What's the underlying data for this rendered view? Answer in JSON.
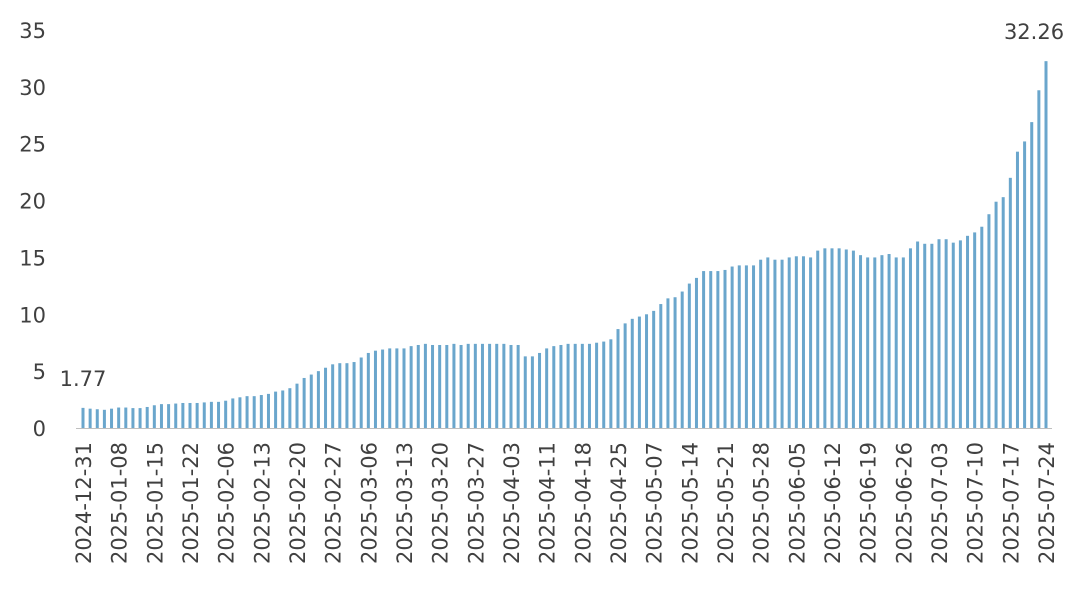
{
  "chart_data": {
    "type": "bar",
    "color": "#6aa6cc",
    "ylim": [
      0,
      35
    ],
    "yticks": [
      0,
      5,
      10,
      15,
      20,
      25,
      30,
      35
    ],
    "categories": [
      "2024-12-31",
      null,
      null,
      null,
      null,
      "2025-01-08",
      null,
      null,
      null,
      null,
      "2025-01-15",
      null,
      null,
      null,
      null,
      "2025-01-22",
      null,
      null,
      null,
      null,
      "2025-02-06",
      null,
      null,
      null,
      null,
      "2025-02-13",
      null,
      null,
      null,
      null,
      "2025-02-20",
      null,
      null,
      null,
      null,
      "2025-02-27",
      null,
      null,
      null,
      null,
      "2025-03-06",
      null,
      null,
      null,
      null,
      "2025-03-13",
      null,
      null,
      null,
      null,
      "2025-03-20",
      null,
      null,
      null,
      null,
      "2025-03-27",
      null,
      null,
      null,
      null,
      "2025-04-03",
      null,
      null,
      null,
      null,
      "2025-04-11",
      null,
      null,
      null,
      null,
      "2025-04-18",
      null,
      null,
      null,
      null,
      "2025-04-25",
      null,
      null,
      null,
      null,
      "2025-05-07",
      null,
      null,
      null,
      null,
      "2025-05-14",
      null,
      null,
      null,
      null,
      "2025-05-21",
      null,
      null,
      null,
      null,
      "2025-05-28",
      null,
      null,
      null,
      null,
      "2025-06-05",
      null,
      null,
      null,
      null,
      "2025-06-12",
      null,
      null,
      null,
      null,
      "2025-06-19",
      null,
      null,
      null,
      null,
      "2025-06-26",
      null,
      null,
      null,
      null,
      "2025-07-03",
      null,
      null,
      null,
      null,
      "2025-07-10",
      null,
      null,
      null,
      null,
      "2025-07-17",
      null,
      null,
      null,
      null,
      "2025-07-24"
    ],
    "values": [
      1.77,
      1.7,
      1.65,
      1.6,
      1.7,
      1.8,
      1.8,
      1.75,
      1.75,
      1.85,
      2.0,
      2.1,
      2.1,
      2.15,
      2.2,
      2.2,
      2.2,
      2.25,
      2.3,
      2.3,
      2.4,
      2.6,
      2.7,
      2.8,
      2.8,
      2.9,
      3.0,
      3.2,
      3.3,
      3.5,
      3.9,
      4.4,
      4.7,
      5.0,
      5.3,
      5.6,
      5.7,
      5.7,
      5.8,
      6.2,
      6.6,
      6.8,
      6.9,
      7.0,
      7.0,
      7.0,
      7.2,
      7.3,
      7.4,
      7.3,
      7.3,
      7.3,
      7.4,
      7.3,
      7.4,
      7.4,
      7.4,
      7.4,
      7.4,
      7.4,
      7.3,
      7.3,
      6.3,
      6.3,
      6.6,
      7.0,
      7.2,
      7.3,
      7.4,
      7.4,
      7.4,
      7.4,
      7.5,
      7.6,
      7.8,
      8.7,
      9.2,
      9.6,
      9.8,
      10.0,
      10.3,
      10.9,
      11.4,
      11.5,
      12.0,
      12.7,
      13.2,
      13.8,
      13.8,
      13.8,
      13.9,
      14.2,
      14.3,
      14.3,
      14.3,
      14.8,
      15.0,
      14.8,
      14.8,
      15.0,
      15.1,
      15.1,
      15.0,
      15.6,
      15.8,
      15.8,
      15.8,
      15.7,
      15.6,
      15.2,
      15.0,
      15.0,
      15.2,
      15.3,
      15.0,
      15.0,
      15.8,
      16.4,
      16.2,
      16.2,
      16.6,
      16.6,
      16.3,
      16.5,
      16.9,
      17.2,
      17.7,
      18.8,
      19.9,
      20.3,
      22.0,
      24.3,
      25.2,
      26.9,
      29.7,
      32.26
    ]
  }
}
